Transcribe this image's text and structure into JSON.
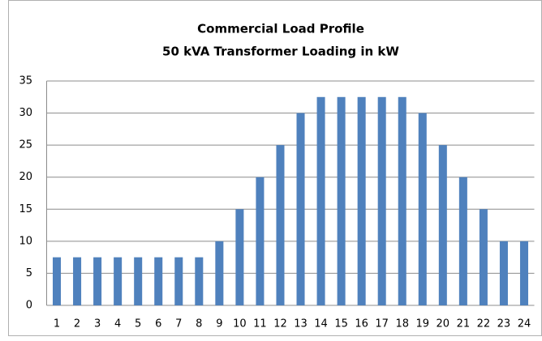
{
  "chart_data": {
    "type": "bar",
    "title": "Commercial Load Profile",
    "subtitle": "50 kVA Transformer Loading in kW",
    "categories": [
      "1",
      "2",
      "3",
      "4",
      "5",
      "6",
      "7",
      "8",
      "9",
      "10",
      "11",
      "12",
      "13",
      "14",
      "15",
      "16",
      "17",
      "18",
      "19",
      "20",
      "21",
      "22",
      "23",
      "24"
    ],
    "values": [
      7.5,
      7.5,
      7.5,
      7.5,
      7.5,
      7.5,
      7.5,
      7.5,
      10,
      15,
      20,
      25,
      30,
      32.5,
      32.5,
      32.5,
      32.5,
      32.5,
      30,
      25,
      20,
      15,
      10,
      10
    ],
    "color": "#4f81bd",
    "ylim": [
      0,
      35
    ],
    "yticks": [
      0,
      5,
      10,
      15,
      20,
      25,
      30,
      35
    ],
    "grid": true
  }
}
